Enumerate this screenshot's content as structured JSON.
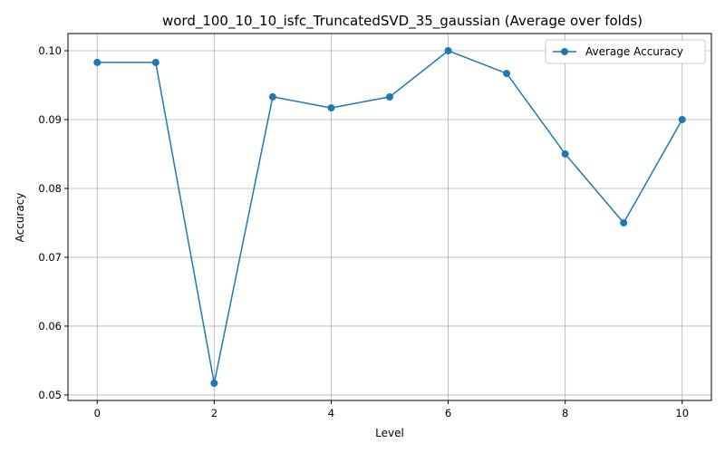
{
  "chart_data": {
    "type": "line",
    "title": "word_100_10_10_isfc_TruncatedSVD_35_gaussian (Average over folds)",
    "xlabel": "Level",
    "ylabel": "Accuracy",
    "xlim": [
      -0.5,
      10.5
    ],
    "ylim": [
      0.0492,
      0.1025
    ],
    "xticks": [
      0,
      2,
      4,
      6,
      8,
      10
    ],
    "xtick_labels": [
      "0",
      "2",
      "4",
      "6",
      "8",
      "10"
    ],
    "yticks": [
      0.05,
      0.06,
      0.07,
      0.08,
      0.09,
      0.1
    ],
    "ytick_labels": [
      "0.05",
      "0.06",
      "0.07",
      "0.08",
      "0.09",
      "0.10"
    ],
    "grid": true,
    "legend_position": "top-right",
    "series": [
      {
        "name": "Average Accuracy",
        "color": "#1f77b4",
        "marker": "circle",
        "x": [
          0,
          1,
          2,
          3,
          4,
          5,
          6,
          7,
          8,
          9,
          10
        ],
        "y": [
          0.0983,
          0.0983,
          0.0517,
          0.0933,
          0.0917,
          0.0933,
          0.1,
          0.0967,
          0.085,
          0.075,
          0.09
        ]
      }
    ]
  }
}
